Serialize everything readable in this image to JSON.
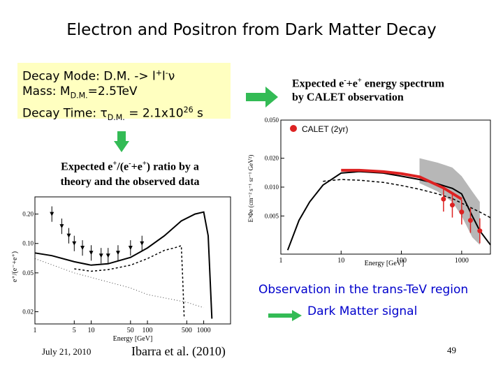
{
  "title": "Electron and Positron  from Dark Matter Decay",
  "decay_box": {
    "mode_prefix": "Decay Mode: D.M. -> l",
    "mass_prefix": "Mass: M",
    "mass_sub": "D.M.",
    "mass_value": "=2.5TeV",
    "time_prefix": "Decay Time: τ",
    "time_sub": "D.M.",
    "time_mid": " = 2.1x10",
    "time_exp": "26",
    "time_unit": " s"
  },
  "spectrum_label": {
    "line1_a": "Expected  e",
    "line1_b": "+e",
    "line1_c": " energy spectrum",
    "line2": "by CALET observation"
  },
  "ratio_label": {
    "a": "Expected e",
    "b": "/(e",
    "c": "+e",
    "d": ") ratio by a",
    "line2": "theory and the observed data"
  },
  "observation_text": "Observation in the trans-TeV region",
  "dark_matter_text": "Dark Matter signal",
  "footer": {
    "date": "July  21, 2010",
    "citation": "Ibarra et al. (2010)",
    "page": "49"
  },
  "colors": {
    "box": "#ffffc0",
    "arrow": "#33bb55",
    "accent_text": "#0000cc",
    "calet_red": "#dd2222",
    "band": "#999999"
  },
  "chart_data": [
    {
      "type": "line",
      "xscale": "log",
      "yscale": "log",
      "xlabel": "Energy [GeV]",
      "ylabel": "E³Φe (cm⁻² s⁻¹ sr⁻¹ GeV²)",
      "xlim": [
        1,
        3000
      ],
      "ylim": [
        0.002,
        0.05
      ],
      "x_ticks": [
        "1",
        "10",
        "100",
        "1000"
      ],
      "y_ticks": [
        "0.050",
        "0.020",
        "0.010",
        "0.005"
      ],
      "legend": "CALET (2yr)",
      "series": [
        {
          "name": "CALET (2yr)",
          "x": [
            500,
            700,
            1000,
            1400,
            2000
          ],
          "y": [
            0.0075,
            0.0065,
            0.0055,
            0.0045,
            0.0035
          ]
        }
      ],
      "curves": {
        "total": {
          "x": [
            1.3,
            2,
            3,
            5,
            10,
            20,
            50,
            100,
            200,
            400,
            700,
            1000,
            1500,
            2000,
            3000
          ],
          "y": [
            0.0022,
            0.0045,
            0.007,
            0.0105,
            0.014,
            0.0145,
            0.014,
            0.013,
            0.012,
            0.0108,
            0.0097,
            0.0085,
            0.005,
            0.0035,
            0.0025
          ]
        },
        "background": {
          "x": [
            5,
            10,
            20,
            50,
            100,
            200,
            400,
            700,
            1000,
            2000,
            3000
          ],
          "y": [
            0.0115,
            0.012,
            0.0118,
            0.0112,
            0.0104,
            0.0095,
            0.0085,
            0.0076,
            0.0068,
            0.0055,
            0.0048
          ]
        }
      }
    },
    {
      "type": "line",
      "xscale": "log",
      "yscale": "log",
      "xlabel": "Energy [GeV]",
      "ylabel": "e⁺/(e⁻+e⁺)",
      "xlim": [
        1,
        3000
      ],
      "ylim": [
        0.015,
        0.3
      ],
      "x_ticks": [
        "1",
        "5",
        "10",
        "50",
        "100",
        "500",
        "1000"
      ],
      "y_ticks": [
        "0.20",
        "0.10",
        "0.05",
        "0.02"
      ],
      "series": [
        {
          "name": "",
          "x": [
            2,
            3,
            4,
            5,
            7,
            10,
            15,
            20,
            30,
            50,
            80
          ],
          "y": [
            0.2,
            0.15,
            0.12,
            0.1,
            0.09,
            0.08,
            0.075,
            0.075,
            0.08,
            0.09,
            0.1
          ]
        }
      ],
      "curves": {
        "solid": {
          "x": [
            1,
            2,
            5,
            10,
            20,
            50,
            100,
            200,
            400,
            700,
            1000,
            1200,
            1400
          ],
          "y": [
            0.08,
            0.075,
            0.065,
            0.06,
            0.062,
            0.072,
            0.09,
            0.12,
            0.17,
            0.2,
            0.21,
            0.12,
            0.017
          ]
        },
        "dashed": {
          "x": [
            5,
            10,
            20,
            50,
            100,
            200,
            300,
            400,
            420,
            450
          ],
          "y": [
            0.055,
            0.052,
            0.054,
            0.06,
            0.07,
            0.085,
            0.09,
            0.095,
            0.05,
            0.017
          ]
        },
        "dotted": {
          "x": [
            1,
            5,
            10,
            50,
            100,
            500,
            1000
          ],
          "y": [
            0.07,
            0.05,
            0.045,
            0.035,
            0.03,
            0.025,
            0.022
          ]
        }
      }
    }
  ]
}
